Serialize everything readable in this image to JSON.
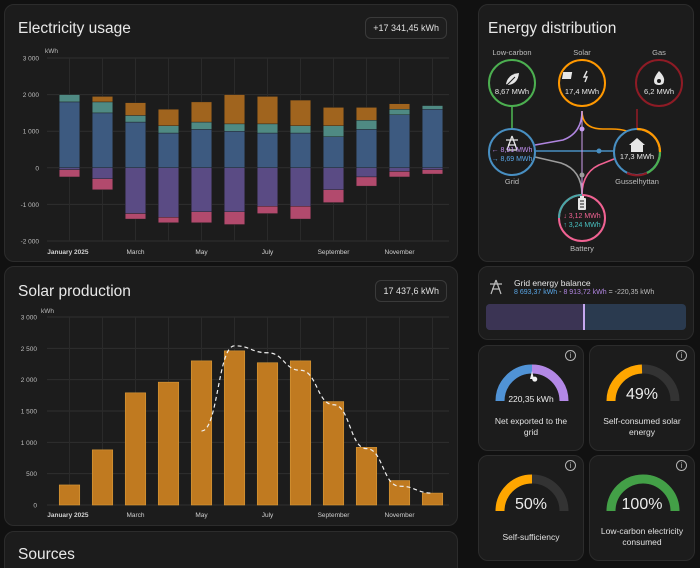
{
  "electricity": {
    "title": "Electricity usage",
    "total": "+17 341,45 kWh",
    "ylabel": "kWh"
  },
  "solar": {
    "title": "Solar production",
    "total": "17 437,6 kWh",
    "ylabel": "kWh"
  },
  "sources": {
    "title": "Sources"
  },
  "energy_distribution": {
    "title": "Energy distribution",
    "low_carbon": {
      "label": "Low-carbon",
      "value": "8,67 MWh",
      "icon": "leaf-icon",
      "color": "#4caf50"
    },
    "solar": {
      "label": "Solar",
      "value": "17,4 MWh",
      "icon": "solar-power-icon",
      "color": "#ff9800"
    },
    "gas": {
      "label": "Gas",
      "value": "6,2 MWh",
      "icon": "fire-icon",
      "color": "#8e1b25"
    },
    "grid": {
      "label": "Grid",
      "out": "8,91 MWh",
      "in": "8,69 MWh",
      "icon": "transmission-tower-icon",
      "color": "#488fc2"
    },
    "home": {
      "label": "Gusselhyttan",
      "value": "17,3 MWh",
      "icon": "home-icon"
    },
    "battery": {
      "label": "Battery",
      "out": "3,12 MWh",
      "in": "3,24 MWh",
      "icon": "battery-icon",
      "color": "#f06292"
    }
  },
  "grid_balance": {
    "title": "Grid energy balance",
    "detail_in": "8 693,37 kWh",
    "detail_mid": " - ",
    "detail_out": "8 913,72 kWh",
    "detail_eq": " = -220,35 kWh",
    "fill_fraction": 0.49
  },
  "gauges": [
    {
      "value": "220,35 kWh",
      "label": "Net exported to the grid",
      "fraction": 0.54,
      "color": "#5093d6",
      "info": "i"
    },
    {
      "value": "49%",
      "label": "Self-consumed solar energy",
      "fraction": 0.49,
      "color": "#ffa600",
      "info": "i"
    },
    {
      "value": "50%",
      "label": "Self-sufficiency",
      "fraction": 0.5,
      "color": "#ffa600",
      "info": "i"
    },
    {
      "value": "100%",
      "label": "Low-carbon electricity consumed",
      "fraction": 1.0,
      "color": "#43a047",
      "info": "i"
    }
  ],
  "chart_data": [
    {
      "type": "bar",
      "title": "Electricity usage",
      "ylabel": "kWh",
      "ylim": [
        -2000,
        3000
      ],
      "yticks": [
        "3 000",
        "2 000",
        "1 000",
        "0",
        "-1 000",
        "-2 000"
      ],
      "ytick_values": [
        3000,
        2000,
        1000,
        0,
        -1000,
        -2000
      ],
      "categories": [
        "January 2025",
        "February",
        "March",
        "April",
        "May",
        "June",
        "July",
        "August",
        "September",
        "October",
        "November",
        "December"
      ],
      "x_tick_labels": [
        "January 2025",
        "",
        "March",
        "",
        "May",
        "",
        "July",
        "",
        "September",
        "",
        "November",
        ""
      ],
      "stacked": true,
      "series": [
        {
          "color": "#3d5a80",
          "values": [
            1800,
            1500,
            1250,
            950,
            1050,
            1000,
            950,
            950,
            850,
            1050,
            1450,
            1600
          ]
        },
        {
          "color": "#4f8a83",
          "values": [
            200,
            300,
            180,
            200,
            200,
            200,
            250,
            200,
            300,
            250,
            150,
            100
          ]
        },
        {
          "color": "#a0641e",
          "values": [
            0,
            150,
            350,
            450,
            550,
            800,
            750,
            700,
            500,
            350,
            150,
            0
          ]
        },
        {
          "color": "#5a4b84",
          "values": [
            -50,
            -300,
            -1250,
            -1350,
            -1200,
            -1200,
            -1050,
            -1050,
            -600,
            -250,
            -100,
            -50
          ]
        },
        {
          "color": "#b24a6d",
          "values": [
            -200,
            -300,
            -150,
            -150,
            -300,
            -350,
            -200,
            -350,
            -350,
            -250,
            -150,
            -120
          ]
        }
      ]
    },
    {
      "type": "bar",
      "title": "Solar production",
      "ylabel": "kWh",
      "ylim": [
        0,
        3000
      ],
      "yticks": [
        "3 000",
        "2 500",
        "2 000",
        "1 500",
        "1 000",
        "500",
        "0"
      ],
      "ytick_values": [
        3000,
        2500,
        2000,
        1500,
        1000,
        500,
        0
      ],
      "categories": [
        "January 2025",
        "February",
        "March",
        "April",
        "May",
        "June",
        "July",
        "August",
        "September",
        "October",
        "November",
        "December"
      ],
      "x_tick_labels": [
        "January 2025",
        "",
        "March",
        "",
        "May",
        "",
        "July",
        "",
        "September",
        "",
        "November",
        ""
      ],
      "values": [
        320,
        880,
        1790,
        1960,
        2300,
        2460,
        2270,
        2300,
        1650,
        920,
        390,
        190
      ],
      "forecast": [
        null,
        null,
        null,
        null,
        1180,
        2540,
        2430,
        2150,
        1600,
        900,
        300,
        190
      ],
      "color": "#c07a20"
    }
  ]
}
